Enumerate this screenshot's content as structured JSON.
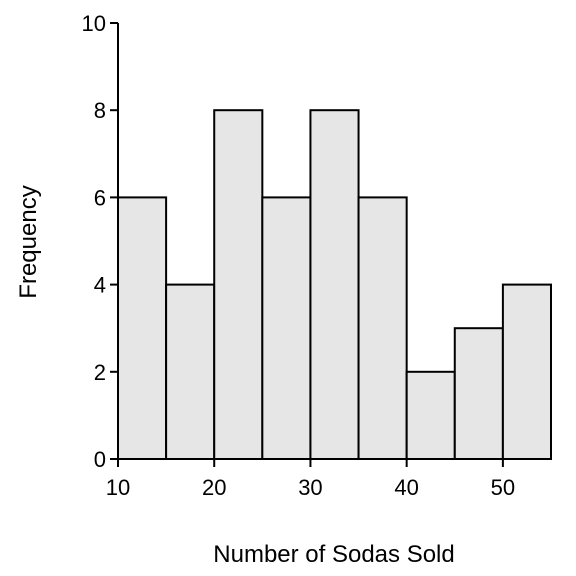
{
  "chart_data": {
    "type": "bar",
    "title": "",
    "xlabel": "Number of Sodas Sold",
    "ylabel": "Frequency",
    "bins": [
      {
        "start": 10,
        "end": 15,
        "value": 6
      },
      {
        "start": 15,
        "end": 20,
        "value": 4
      },
      {
        "start": 20,
        "end": 25,
        "value": 8
      },
      {
        "start": 25,
        "end": 30,
        "value": 6
      },
      {
        "start": 30,
        "end": 35,
        "value": 8
      },
      {
        "start": 35,
        "end": 40,
        "value": 6
      },
      {
        "start": 40,
        "end": 45,
        "value": 2
      },
      {
        "start": 45,
        "end": 50,
        "value": 3
      },
      {
        "start": 50,
        "end": 55,
        "value": 4
      }
    ],
    "xlim": [
      10,
      55
    ],
    "ylim": [
      0,
      10
    ],
    "xticks": [
      10,
      20,
      30,
      40,
      50
    ],
    "yticks": [
      0,
      2,
      4,
      6,
      8,
      10
    ],
    "grid": false,
    "legend": "none"
  }
}
